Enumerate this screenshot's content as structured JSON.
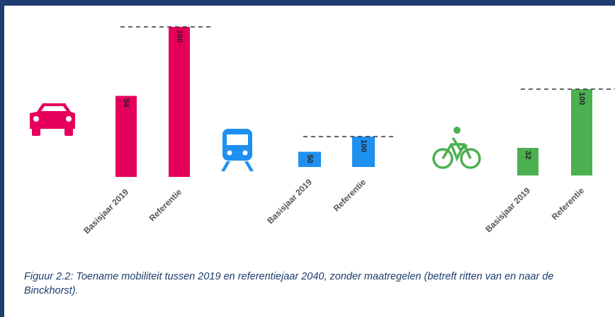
{
  "chart_data": [
    {
      "type": "bar",
      "categories": [
        "Basisjaar 2019",
        "Referentie"
      ],
      "values": [
        54,
        100
      ],
      "color": "#e5005b",
      "ylim": [
        0,
        100
      ]
    },
    {
      "type": "bar",
      "categories": [
        "Basisjaar 2019",
        "Referentie"
      ],
      "values": [
        50,
        100
      ],
      "color": "#1e90f0",
      "ylim": [
        0,
        100
      ]
    },
    {
      "type": "bar",
      "categories": [
        "Basisjaar 2019",
        "Referentie"
      ],
      "values": [
        32,
        100
      ],
      "color": "#4caf50",
      "ylim": [
        0,
        100
      ]
    }
  ],
  "caption": "Figuur 2.2: Toename mobiliteit tussen 2019 en referentiejaar 2040, zonder maatregelen (betreft ritten van en naar de Binckhorst)."
}
